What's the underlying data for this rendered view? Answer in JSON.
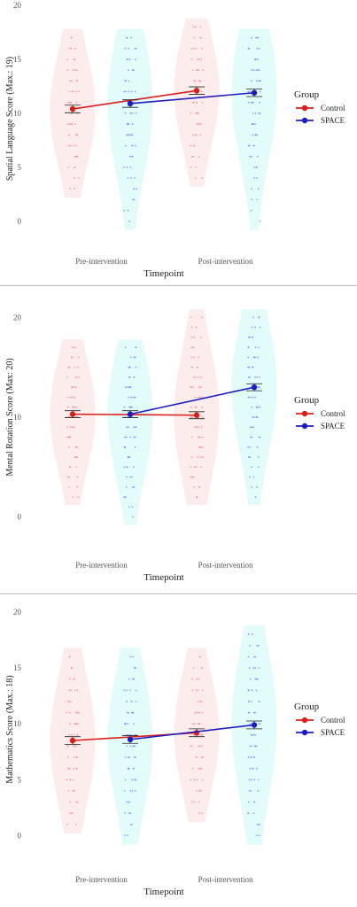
{
  "colors": {
    "control": "#dd1c1c",
    "space": "#1d1dc4",
    "control_violin": "#fdecec",
    "space_violin": "#e2fbfb",
    "control_dot": "#e88a8a",
    "space_dot": "#6f86e6"
  },
  "chart_data": [
    {
      "type": "line",
      "ylabel": "Spatial Language Score (Max.: 19)",
      "xlabel": "Timepoint",
      "categories": [
        "Pre-intervention",
        "Post-intervention"
      ],
      "yticks": [
        "0",
        "5",
        "10",
        "15",
        "20"
      ],
      "ylim": [
        -1,
        20
      ],
      "legend": {
        "title": "Group",
        "position": "right",
        "items": [
          "Control",
          "SPACE"
        ]
      },
      "series": [
        {
          "name": "Control",
          "values": [
            10.4,
            12.1
          ],
          "range": [
            [
              3,
              17
            ],
            [
              4,
              18
            ]
          ]
        },
        {
          "name": "SPACE",
          "values": [
            10.9,
            11.9
          ],
          "range": [
            [
              0,
              17
            ],
            [
              0,
              17
            ]
          ]
        }
      ]
    },
    {
      "type": "line",
      "ylabel": "Mental Rotation Score (Max: 20)",
      "xlabel": "Timepoint",
      "categories": [
        "Pre-intervention",
        "Post-intervention"
      ],
      "yticks": [
        "0",
        "10",
        "20"
      ],
      "ylim": [
        -1,
        21
      ],
      "legend": {
        "title": "Group",
        "position": "right",
        "items": [
          "Control",
          "SPACE"
        ]
      },
      "series": [
        {
          "name": "Control",
          "values": [
            10.3,
            10.2
          ],
          "range": [
            [
              2,
              17
            ],
            [
              2,
              20
            ]
          ]
        },
        {
          "name": "SPACE",
          "values": [
            10.3,
            13.0
          ],
          "range": [
            [
              0,
              17
            ],
            [
              2,
              20
            ]
          ]
        }
      ]
    },
    {
      "type": "line",
      "ylabel": "Mathematics Score (Max.: 18)",
      "xlabel": "Timepoint",
      "categories": [
        "Pre-intervention",
        "Post-intervention"
      ],
      "yticks": [
        "0",
        "5",
        "10",
        "15",
        "20"
      ],
      "ylim": [
        -1,
        20
      ],
      "legend": {
        "title": "Group",
        "position": "right",
        "items": [
          "Control",
          "SPACE"
        ]
      },
      "series": [
        {
          "name": "Control",
          "values": [
            8.5,
            9.2
          ],
          "range": [
            [
              1,
              16
            ],
            [
              2,
              16
            ]
          ]
        },
        {
          "name": "SPACE",
          "values": [
            8.6,
            9.9
          ],
          "range": [
            [
              0,
              16
            ],
            [
              0,
              18
            ]
          ]
        }
      ]
    }
  ]
}
